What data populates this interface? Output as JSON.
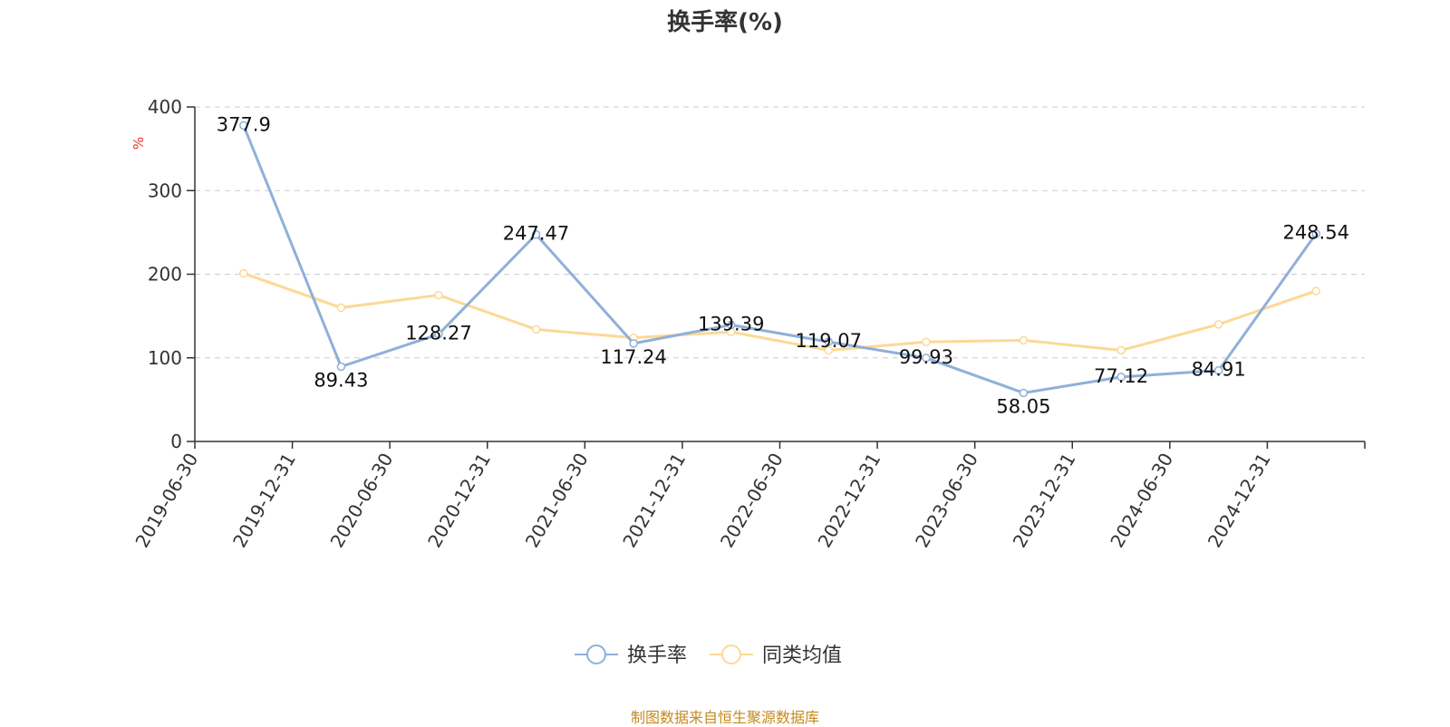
{
  "chart_data": {
    "type": "line",
    "title": "换手率(%)",
    "ylabel": "%",
    "ylim": [
      0,
      400
    ],
    "yticks": [
      0,
      100,
      200,
      300,
      400
    ],
    "grid": true,
    "legend_position": "bottom-center",
    "categories": [
      "2019-06-30",
      "2019-12-31",
      "2020-06-30",
      "2020-12-31",
      "2021-06-30",
      "2021-12-31",
      "2022-06-30",
      "2022-12-31",
      "2023-06-30",
      "2023-12-31",
      "2024-06-30",
      "2024-12-31"
    ],
    "series": [
      {
        "name": "换手率",
        "color": "#8fb0d9",
        "show_labels": true,
        "values": [
          377.9,
          89.43,
          128.27,
          247.47,
          117.24,
          139.39,
          119.07,
          99.93,
          58.05,
          77.12,
          84.91,
          248.54
        ]
      },
      {
        "name": "同类均值",
        "color": "#fcd995",
        "show_labels": false,
        "values": [
          201,
          160,
          175,
          134,
          124,
          131,
          109,
          119,
          121,
          109,
          140,
          180
        ]
      }
    ],
    "source_note": "制图数据来自恒生聚源数据库"
  }
}
